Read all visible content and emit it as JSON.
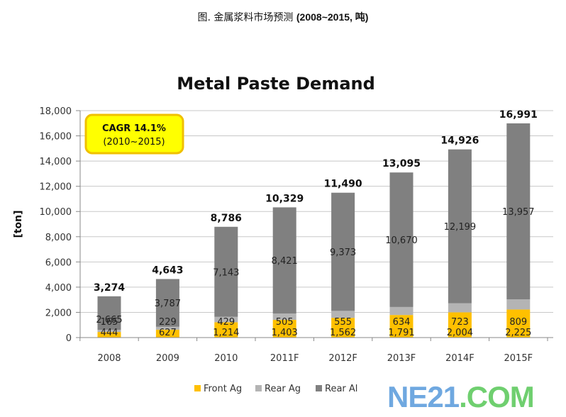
{
  "caption": {
    "chinese": "图. 金属浆料市场预测",
    "range": "(2008~2015, 吨)"
  },
  "watermark": {
    "part1": "NE21",
    "part2": ".COM"
  },
  "chart_data": {
    "type": "bar",
    "stacked": true,
    "title": "Metal Paste Demand",
    "xlabel": "",
    "ylabel": "[ton]",
    "ylim": [
      0,
      18000
    ],
    "yticks": [
      0,
      2000,
      4000,
      6000,
      8000,
      10000,
      12000,
      14000,
      16000,
      18000
    ],
    "ytick_labels": [
      "0",
      "2,000",
      "4,000",
      "6,000",
      "8,000",
      "10,000",
      "12,000",
      "14,000",
      "16,000",
      "18,000"
    ],
    "grid": true,
    "categories": [
      "2008",
      "2009",
      "2010",
      "2011F",
      "2012F",
      "2013F",
      "2014F",
      "2015F"
    ],
    "series": [
      {
        "name": "Front Ag",
        "color": "#ffc000",
        "values": [
          444,
          627,
          1214,
          1403,
          1562,
          1791,
          2004,
          2225
        ],
        "labels": [
          "444",
          "627",
          "1,214",
          "1,403",
          "1,562",
          "1,791",
          "2,004",
          "2,225"
        ]
      },
      {
        "name": "Rear Ag",
        "color": "#b4b4b4",
        "values": [
          165,
          229,
          429,
          505,
          555,
          634,
          723,
          809
        ],
        "labels": [
          "165",
          "229",
          "429",
          "505",
          "555",
          "634",
          "723",
          "809"
        ]
      },
      {
        "name": "Rear Al",
        "color": "#808080",
        "values": [
          2665,
          3787,
          7143,
          8421,
          9373,
          10670,
          12199,
          13957
        ],
        "labels": [
          "2,665",
          "3,787",
          "7,143",
          "8,421",
          "9,373",
          "10,670",
          "12,199",
          "13,957"
        ]
      }
    ],
    "totals": [
      3274,
      4643,
      8786,
      10329,
      11490,
      13095,
      14926,
      16991
    ],
    "total_labels": [
      "3,274",
      "4,643",
      "8,786",
      "10,329",
      "11,490",
      "13,095",
      "14,926",
      "16,991"
    ],
    "legend_position": "bottom",
    "annotation": {
      "line1": "CAGR 14.1%",
      "line2": "(2010~2015)",
      "fill": "#ffff00",
      "border": "#f0c000"
    }
  }
}
